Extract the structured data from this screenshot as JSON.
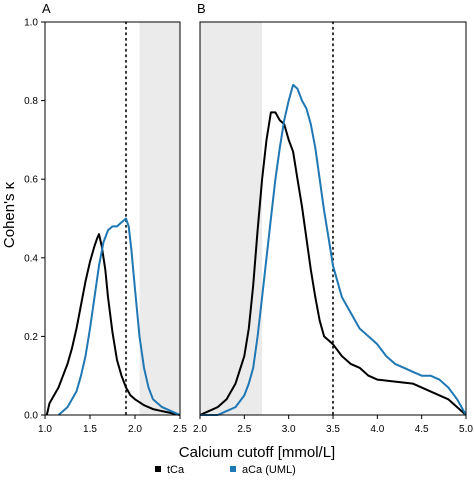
{
  "figure": {
    "ylabel": "Cohen's κ",
    "xlabel": "Calcium cutoff [mmol/L]",
    "legend": {
      "placement": "bottom",
      "items": [
        {
          "label": "tCa",
          "color": "#000000"
        },
        {
          "label": "aCa (UML)",
          "color": "#1f77b4"
        }
      ]
    }
  },
  "chart_data": [
    {
      "panel_label": "A",
      "type": "line",
      "xlim": [
        1.0,
        2.5
      ],
      "ylim": [
        0.0,
        1.0
      ],
      "xticks": [
        "1.0",
        "1.5",
        "2.0",
        "2.5"
      ],
      "yticks": [
        "0.0",
        "0.2",
        "0.4",
        "0.6",
        "0.8",
        "1.0"
      ],
      "grid": false,
      "vline": 1.9,
      "shaded_region": [
        2.05,
        2.5
      ],
      "series": [
        {
          "name": "tCa",
          "color": "#000000",
          "x": [
            1.02,
            1.05,
            1.1,
            1.15,
            1.2,
            1.25,
            1.3,
            1.35,
            1.4,
            1.45,
            1.5,
            1.55,
            1.58,
            1.6,
            1.63,
            1.67,
            1.7,
            1.75,
            1.8,
            1.85,
            1.9,
            1.95,
            2.0,
            2.1,
            2.2,
            2.3,
            2.4,
            2.5
          ],
          "y": [
            0.0,
            0.03,
            0.05,
            0.07,
            0.1,
            0.13,
            0.17,
            0.22,
            0.28,
            0.34,
            0.39,
            0.43,
            0.45,
            0.46,
            0.43,
            0.37,
            0.3,
            0.21,
            0.14,
            0.1,
            0.07,
            0.05,
            0.04,
            0.025,
            0.015,
            0.01,
            0.005,
            0.0
          ]
        },
        {
          "name": "aCa (UML)",
          "color": "#1f77b4",
          "x": [
            1.15,
            1.2,
            1.25,
            1.3,
            1.35,
            1.4,
            1.45,
            1.5,
            1.55,
            1.6,
            1.65,
            1.7,
            1.75,
            1.8,
            1.85,
            1.9,
            1.93,
            1.96,
            2.0,
            2.05,
            2.1,
            2.15,
            2.2,
            2.3,
            2.4,
            2.5
          ],
          "y": [
            0.0,
            0.01,
            0.02,
            0.04,
            0.06,
            0.1,
            0.15,
            0.22,
            0.3,
            0.38,
            0.44,
            0.47,
            0.48,
            0.48,
            0.49,
            0.5,
            0.48,
            0.42,
            0.32,
            0.2,
            0.12,
            0.07,
            0.04,
            0.02,
            0.01,
            0.0
          ]
        }
      ]
    },
    {
      "panel_label": "B",
      "type": "line",
      "xlim": [
        2.0,
        5.0
      ],
      "ylim": [
        0.0,
        1.0
      ],
      "xticks": [
        "2.0",
        "2.5",
        "3.0",
        "3.5",
        "4.0",
        "4.5",
        "5.0"
      ],
      "yticks": [],
      "grid": false,
      "vline": 3.5,
      "shaded_region": [
        2.0,
        2.7
      ],
      "series": [
        {
          "name": "tCa",
          "color": "#000000",
          "x": [
            2.0,
            2.1,
            2.2,
            2.3,
            2.4,
            2.5,
            2.55,
            2.6,
            2.65,
            2.7,
            2.75,
            2.8,
            2.85,
            2.9,
            2.95,
            3.0,
            3.05,
            3.1,
            3.15,
            3.2,
            3.25,
            3.3,
            3.35,
            3.4,
            3.5,
            3.6,
            3.7,
            3.8,
            3.9,
            4.0,
            4.2,
            4.4,
            4.6,
            4.8,
            4.9,
            5.0
          ],
          "y": [
            0.0,
            0.01,
            0.02,
            0.04,
            0.08,
            0.15,
            0.22,
            0.33,
            0.47,
            0.6,
            0.7,
            0.77,
            0.77,
            0.75,
            0.74,
            0.7,
            0.67,
            0.6,
            0.53,
            0.45,
            0.37,
            0.3,
            0.24,
            0.2,
            0.18,
            0.15,
            0.13,
            0.12,
            0.1,
            0.09,
            0.085,
            0.08,
            0.06,
            0.04,
            0.02,
            0.0
          ]
        },
        {
          "name": "aCa (UML)",
          "color": "#1f77b4",
          "x": [
            2.0,
            2.2,
            2.3,
            2.4,
            2.5,
            2.55,
            2.6,
            2.65,
            2.7,
            2.75,
            2.8,
            2.85,
            2.9,
            2.95,
            3.0,
            3.05,
            3.1,
            3.15,
            3.2,
            3.25,
            3.3,
            3.35,
            3.4,
            3.45,
            3.5,
            3.6,
            3.7,
            3.8,
            3.9,
            4.0,
            4.1,
            4.2,
            4.3,
            4.4,
            4.5,
            4.6,
            4.7,
            4.8,
            4.9,
            5.0
          ],
          "y": [
            0.0,
            0.0,
            0.01,
            0.02,
            0.05,
            0.08,
            0.12,
            0.2,
            0.3,
            0.4,
            0.5,
            0.6,
            0.68,
            0.75,
            0.8,
            0.84,
            0.83,
            0.8,
            0.78,
            0.74,
            0.68,
            0.6,
            0.52,
            0.45,
            0.38,
            0.3,
            0.26,
            0.22,
            0.2,
            0.18,
            0.15,
            0.13,
            0.12,
            0.11,
            0.1,
            0.1,
            0.09,
            0.07,
            0.04,
            0.0
          ]
        }
      ]
    }
  ]
}
